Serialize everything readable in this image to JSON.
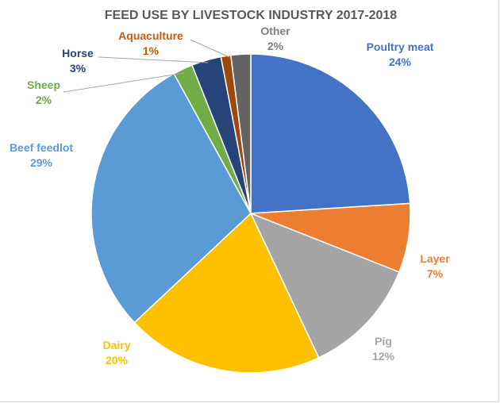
{
  "chart_data": {
    "type": "pie",
    "title": "FEED USE BY LIVESTOCK INDUSTRY 2017-2018",
    "slices": [
      {
        "label": "Poultry meat",
        "value": 24,
        "value_label": "24%",
        "color": "#4472C4",
        "label_color": "#4472C4"
      },
      {
        "label": "Layer",
        "value": 7,
        "value_label": "7%",
        "color": "#ED7D31",
        "label_color": "#ED7D31"
      },
      {
        "label": "Pig",
        "value": 12,
        "value_label": "12%",
        "color": "#A5A5A5",
        "label_color": "#A5A5A5"
      },
      {
        "label": "Dairy",
        "value": 20,
        "value_label": "20%",
        "color": "#FFC000",
        "label_color": "#FFC000"
      },
      {
        "label": "Beef feedlot",
        "value": 29,
        "value_label": "29%",
        "color": "#5B9BD5",
        "label_color": "#5B9BD5"
      },
      {
        "label": "Sheep",
        "value": 2,
        "value_label": "2%",
        "color": "#70AD47",
        "label_color": "#70AD47"
      },
      {
        "label": "Horse",
        "value": 3,
        "value_label": "3%",
        "color": "#264478",
        "label_color": "#264478"
      },
      {
        "label": "Aquaculture",
        "value": 1,
        "value_label": "1%",
        "color": "#9E480E",
        "label_color": "#C55A11"
      },
      {
        "label": "Other",
        "value": 2,
        "value_label": "2%",
        "color": "#636363",
        "label_color": "#7F7F7F"
      }
    ]
  }
}
